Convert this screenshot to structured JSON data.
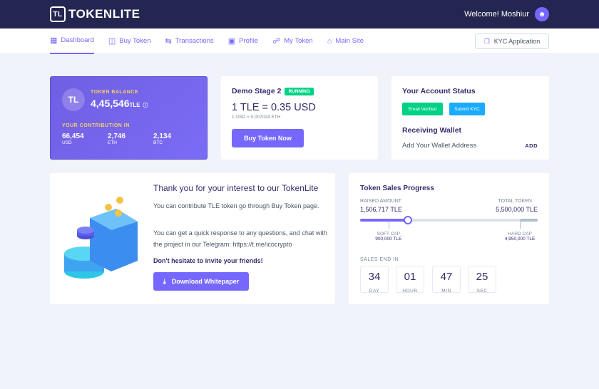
{
  "header": {
    "brand": "TOKENLITE",
    "logo_mark": "TL",
    "welcome": "Welcome! Moshiur"
  },
  "nav": {
    "items": [
      {
        "label": "Dashboard",
        "icon": "grid-icon"
      },
      {
        "label": "Buy Token",
        "icon": "coins-icon"
      },
      {
        "label": "Transactions",
        "icon": "swap-icon"
      },
      {
        "label": "Profile",
        "icon": "user-icon"
      },
      {
        "label": "My Token",
        "icon": "token-icon"
      },
      {
        "label": "Main Site",
        "icon": "home-icon"
      }
    ],
    "kyc": "KYC Application"
  },
  "balance": {
    "label": "TOKEN BALANCE",
    "value": "4,45,546",
    "unit": "TLE",
    "contrib_label": "YOUR CONTRIBUTION IN",
    "contrib": [
      {
        "v": "66,454",
        "c": "USD"
      },
      {
        "v": "2,746",
        "c": "ETH"
      },
      {
        "v": "2,134",
        "c": "BTC"
      }
    ]
  },
  "stage": {
    "title": "Demo Stage 2",
    "badge": "RUNNING",
    "price": "1 TLE = 0.35 USD",
    "sub": "1 USD = 0.007024 ETH",
    "button": "Buy Token Now"
  },
  "account": {
    "title": "Your Account Status",
    "email": "Email Verified",
    "kyc": "Submit KYC",
    "wallet_title": "Receiving Wallet",
    "wallet_text": "Add Your Wallet Address",
    "add": "ADD"
  },
  "info": {
    "title": "Thank you for your interest to our TokenLite",
    "p1": "You can contribute TLE token go through Buy Token page.",
    "p2": "You can get a quick response to any questions, and chat with the project in our Telegram: https://t.me/icocrypto",
    "p3": "Don't hesitate to invite your friends!",
    "button": "Download Whitepaper"
  },
  "sales": {
    "title": "Token Sales Progress",
    "raised_label": "RAISED AMOUNT",
    "raised": "1,506,717 TLE",
    "total_label": "TOTAL TOKEN",
    "total": "5,500,000 TLE",
    "progress_pct": 27,
    "soft_pct": 16,
    "hard_pct": 90,
    "soft_label": "SOFT CAP",
    "soft": "900,000 TLE",
    "hard_label": "HARD CAP",
    "hard": "4,950,000 TLE",
    "end_label": "SALES END IN",
    "timer": [
      {
        "v": "34",
        "u": "DAY"
      },
      {
        "v": "01",
        "u": "HOUR"
      },
      {
        "v": "47",
        "u": "MIN"
      },
      {
        "v": "25",
        "u": "SEC"
      }
    ]
  },
  "colors": {
    "accent": "#7668fe",
    "header": "#232650",
    "success": "#00d285",
    "info": "#1babfe"
  }
}
